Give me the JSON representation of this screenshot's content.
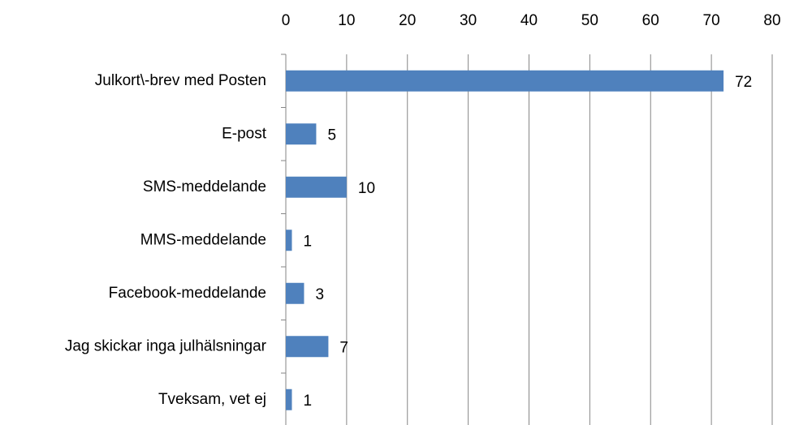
{
  "chart_data": {
    "type": "bar",
    "orientation": "horizontal",
    "categories": [
      "Julkort\\-brev med Posten",
      "E-post",
      "SMS-meddelande",
      "MMS-meddelande",
      "Facebook-meddelande",
      "Jag skickar inga julhälsningar",
      "Tveksam, vet ej"
    ],
    "values": [
      72,
      5,
      10,
      1,
      3,
      7,
      1
    ],
    "color": "#4f81bd",
    "xlim": [
      0,
      80
    ],
    "xticks": [
      0,
      10,
      20,
      30,
      40,
      50,
      60,
      70,
      80
    ],
    "grid": true
  }
}
